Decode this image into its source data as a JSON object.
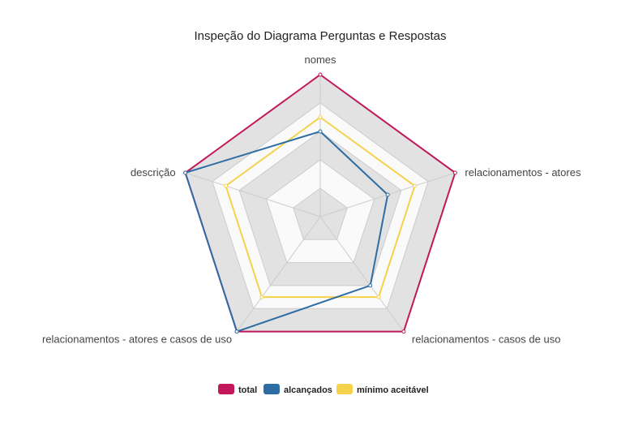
{
  "chart_data": {
    "type": "radar",
    "title": "Inspeção do Diagrama Perguntas e Respostas",
    "axes": [
      "nomes",
      "relacionamentos - atores",
      "relacionamentos - casos de uso",
      "relacionamentos - atores e casos de uso",
      "descrição"
    ],
    "scale": {
      "min": 0,
      "max": 5,
      "ticks": [
        0,
        1,
        2,
        3,
        4,
        5
      ],
      "grid": true
    },
    "series": [
      {
        "name": "total",
        "color": "#c2185b",
        "values": [
          5,
          5,
          5,
          5,
          5
        ]
      },
      {
        "name": "alcançados",
        "color": "#2e6da4",
        "values": [
          3,
          2.5,
          3,
          5,
          5
        ]
      },
      {
        "name": "mínimo aceitável",
        "color": "#f5d24b",
        "values": [
          3.5,
          3.5,
          3.5,
          3.5,
          3.5
        ]
      }
    ],
    "legend_position": "bottom"
  }
}
